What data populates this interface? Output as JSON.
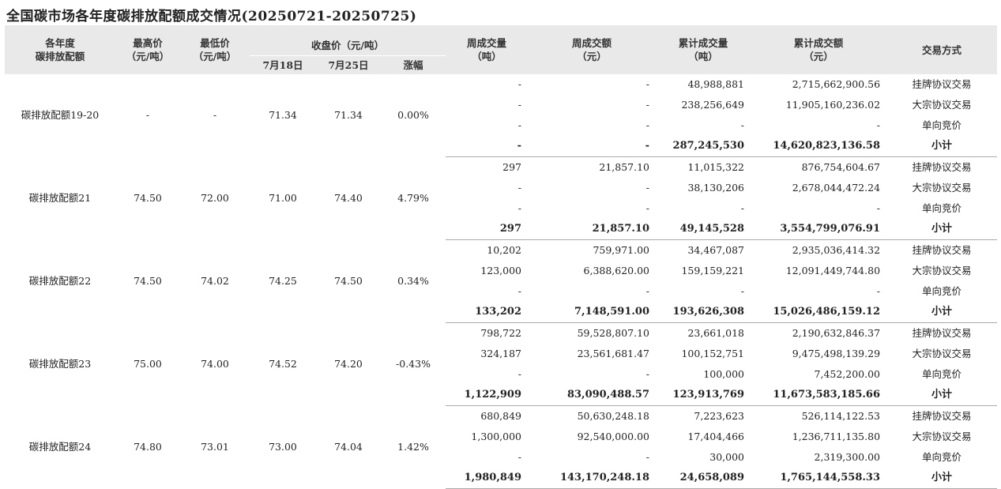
{
  "title": "全国碳市场各年度碳排放配额成交情况(20250721-20250725)",
  "headers": {
    "product": [
      "各年度",
      "碳排放配额"
    ],
    "high": [
      "最高价",
      "（元/吨）"
    ],
    "low": [
      "最低价",
      "（元/吨）"
    ],
    "close_group": "收盘价（元/吨）",
    "close_prev": "7月18日",
    "close_curr": "7月25日",
    "change": "涨幅",
    "week_vol": [
      "周成交量",
      "（吨）"
    ],
    "week_amt": [
      "周成交额",
      "（元）"
    ],
    "cum_vol": [
      "累计成交量",
      "（吨）"
    ],
    "cum_amt": [
      "累计成交额",
      "（元）"
    ],
    "method": "交易方式"
  },
  "groups": [
    {
      "name": "碳排放配额19-20",
      "high": "-",
      "low": "-",
      "close_prev": "71.34",
      "close_curr": "71.34",
      "change": "0.00%",
      "rows": [
        {
          "week_vol": "-",
          "week_amt": "-",
          "cum_vol": "48,988,881",
          "cum_amt": "2,715,662,900.56",
          "method": "挂牌协议交易"
        },
        {
          "week_vol": "-",
          "week_amt": "-",
          "cum_vol": "238,256,649",
          "cum_amt": "11,905,160,236.02",
          "method": "大宗协议交易"
        },
        {
          "week_vol": "-",
          "week_amt": "-",
          "cum_vol": "-",
          "cum_amt": "-",
          "method": "单向竞价"
        },
        {
          "week_vol": "-",
          "week_amt": "-",
          "cum_vol": "287,245,530",
          "cum_amt": "14,620,823,136.58",
          "method": "小计"
        }
      ]
    },
    {
      "name": "碳排放配额21",
      "high": "74.50",
      "low": "72.00",
      "close_prev": "71.00",
      "close_curr": "74.40",
      "change": "4.79%",
      "rows": [
        {
          "week_vol": "297",
          "week_amt": "21,857.10",
          "cum_vol": "11,015,322",
          "cum_amt": "876,754,604.67",
          "method": "挂牌协议交易"
        },
        {
          "week_vol": "-",
          "week_amt": "-",
          "cum_vol": "38,130,206",
          "cum_amt": "2,678,044,472.24",
          "method": "大宗协议交易"
        },
        {
          "week_vol": "-",
          "week_amt": "-",
          "cum_vol": "-",
          "cum_amt": "-",
          "method": "单向竞价"
        },
        {
          "week_vol": "297",
          "week_amt": "21,857.10",
          "cum_vol": "49,145,528",
          "cum_amt": "3,554,799,076.91",
          "method": "小计"
        }
      ]
    },
    {
      "name": "碳排放配额22",
      "high": "74.50",
      "low": "74.02",
      "close_prev": "74.25",
      "close_curr": "74.50",
      "change": "0.34%",
      "rows": [
        {
          "week_vol": "10,202",
          "week_amt": "759,971.00",
          "cum_vol": "34,467,087",
          "cum_amt": "2,935,036,414.32",
          "method": "挂牌协议交易"
        },
        {
          "week_vol": "123,000",
          "week_amt": "6,388,620.00",
          "cum_vol": "159,159,221",
          "cum_amt": "12,091,449,744.80",
          "method": "大宗协议交易"
        },
        {
          "week_vol": "-",
          "week_amt": "-",
          "cum_vol": "-",
          "cum_amt": "-",
          "method": "单向竞价"
        },
        {
          "week_vol": "133,202",
          "week_amt": "7,148,591.00",
          "cum_vol": "193,626,308",
          "cum_amt": "15,026,486,159.12",
          "method": "小计"
        }
      ]
    },
    {
      "name": "碳排放配额23",
      "high": "75.00",
      "low": "74.00",
      "close_prev": "74.52",
      "close_curr": "74.20",
      "change": "-0.43%",
      "rows": [
        {
          "week_vol": "798,722",
          "week_amt": "59,528,807.10",
          "cum_vol": "23,661,018",
          "cum_amt": "2,190,632,846.37",
          "method": "挂牌协议交易"
        },
        {
          "week_vol": "324,187",
          "week_amt": "23,561,681.47",
          "cum_vol": "100,152,751",
          "cum_amt": "9,475,498,139.29",
          "method": "大宗协议交易"
        },
        {
          "week_vol": "-",
          "week_amt": "-",
          "cum_vol": "100,000",
          "cum_amt": "7,452,200.00",
          "method": "单向竞价"
        },
        {
          "week_vol": "1,122,909",
          "week_amt": "83,090,488.57",
          "cum_vol": "123,913,769",
          "cum_amt": "11,673,583,185.66",
          "method": "小计"
        }
      ]
    },
    {
      "name": "碳排放配额24",
      "high": "74.80",
      "low": "73.01",
      "close_prev": "73.00",
      "close_curr": "74.04",
      "change": "1.42%",
      "rows": [
        {
          "week_vol": "680,849",
          "week_amt": "50,630,248.18",
          "cum_vol": "7,223,623",
          "cum_amt": "526,114,122.53",
          "method": "挂牌协议交易"
        },
        {
          "week_vol": "1,300,000",
          "week_amt": "92,540,000.00",
          "cum_vol": "17,404,466",
          "cum_amt": "1,236,711,135.80",
          "method": "大宗协议交易"
        },
        {
          "week_vol": "-",
          "week_amt": "-",
          "cum_vol": "30,000",
          "cum_amt": "2,319,300.00",
          "method": "单向竞价"
        },
        {
          "week_vol": "1,980,849",
          "week_amt": "143,170,248.18",
          "cum_vol": "24,658,089",
          "cum_amt": "1,765,144,558.33",
          "method": "小计"
        }
      ]
    }
  ]
}
